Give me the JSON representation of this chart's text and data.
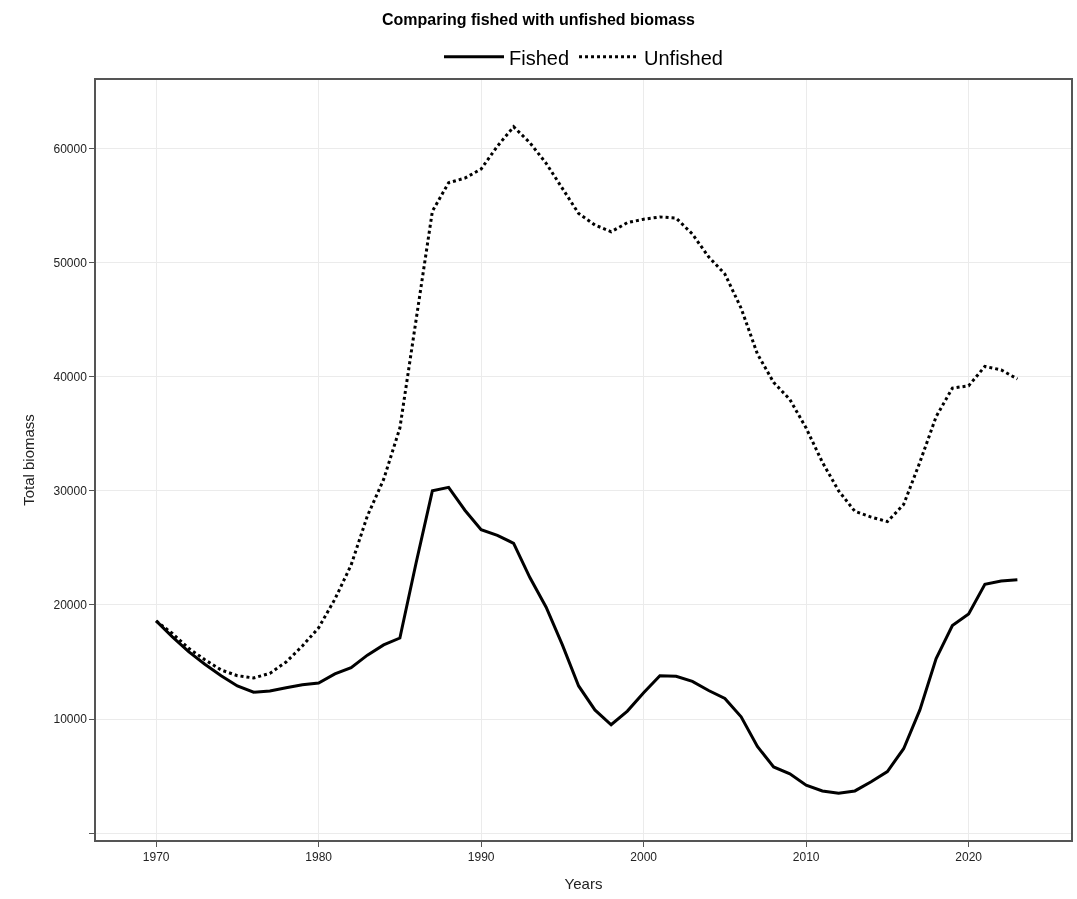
{
  "chart_data": {
    "type": "line",
    "title": "Comparing fished with unfished biomass",
    "xlabel": "Years",
    "ylabel": "Total biomass",
    "x": [
      1970,
      1971,
      1972,
      1973,
      1974,
      1975,
      1976,
      1977,
      1978,
      1979,
      1980,
      1981,
      1982,
      1983,
      1984,
      1985,
      1986,
      1987,
      1988,
      1989,
      1990,
      1991,
      1992,
      1993,
      1994,
      1995,
      1996,
      1997,
      1998,
      1999,
      2000,
      2001,
      2002,
      2003,
      2004,
      2005,
      2006,
      2007,
      2008,
      2009,
      2010,
      2011,
      2012,
      2013,
      2014,
      2015,
      2016,
      2017,
      2018,
      2019,
      2020,
      2021,
      2022,
      2023
    ],
    "series": [
      {
        "name": "Fished",
        "color": "#000000",
        "line_style": "solid",
        "values": [
          18600,
          17200,
          15900,
          14800,
          13800,
          12900,
          12350,
          12450,
          12750,
          13000,
          13150,
          13950,
          14500,
          15600,
          16500,
          17100,
          23700,
          30000,
          30300,
          28300,
          26600,
          26100,
          25400,
          22400,
          19800,
          16500,
          12900,
          10800,
          9500,
          10700,
          12300,
          13800,
          13750,
          13300,
          12500,
          11800,
          10200,
          7600,
          5800,
          5200,
          4200,
          3700,
          3500,
          3700,
          4500,
          5400,
          7400,
          10800,
          15300,
          18200,
          19200,
          21800,
          22100,
          22200
        ]
      },
      {
        "name": "Unfished",
        "color": "#000000",
        "line_style": "dotted",
        "values": [
          18600,
          17500,
          16200,
          15200,
          14300,
          13800,
          13600,
          14000,
          15000,
          16400,
          18000,
          20500,
          23500,
          27800,
          31000,
          35500,
          45000,
          54500,
          57000,
          57400,
          58200,
          60200,
          61900,
          60500,
          58700,
          56500,
          54300,
          53300,
          52700,
          53500,
          53800,
          54000,
          53900,
          52500,
          50500,
          49000,
          46000,
          42000,
          39500,
          38000,
          35500,
          32500,
          30000,
          28200,
          27700,
          27300,
          28800,
          32500,
          36500,
          39000,
          39200,
          40900,
          40600,
          39800
        ]
      }
    ],
    "xlim": [
      1966.3,
      2026.3
    ],
    "xticks": [
      1970,
      1980,
      1990,
      2000,
      2010,
      2020
    ],
    "ylim": [
      -600,
      66000
    ],
    "yticks": [
      {
        "value": 0,
        "label": null
      },
      10000,
      20000,
      30000,
      40000,
      50000,
      60000
    ],
    "grid": true,
    "legend": "top",
    "marker": "none"
  }
}
